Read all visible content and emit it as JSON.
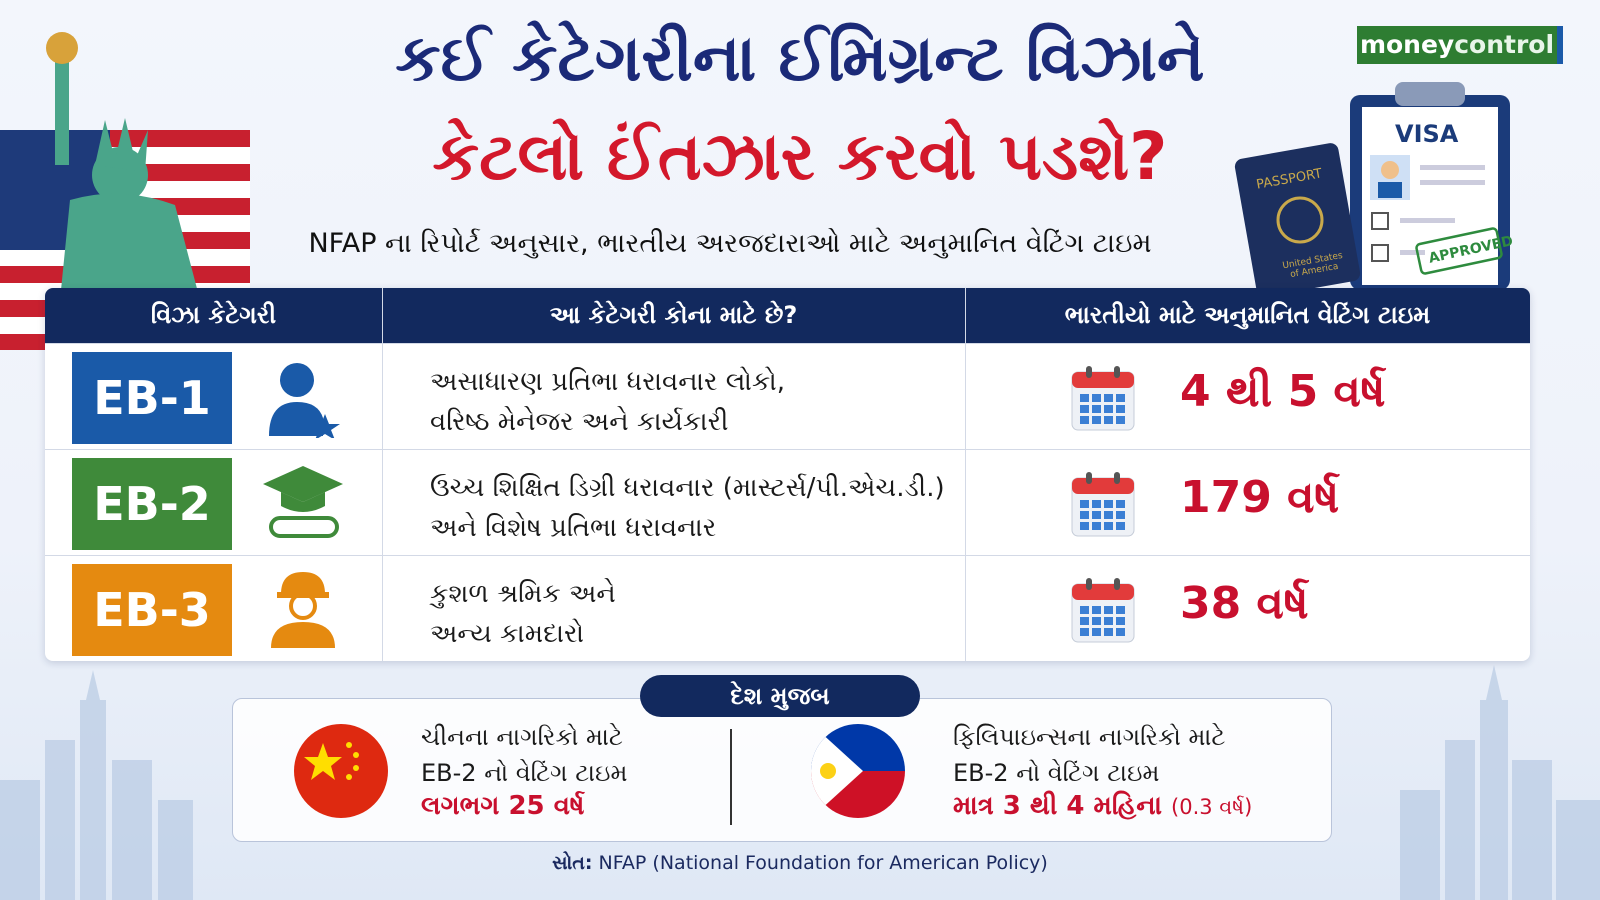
{
  "brand": {
    "part1": "money",
    "part2": "control"
  },
  "header": {
    "title_line1": "કઈ કેટેગરીના ઈમિગ્રન્ટ વિઝાને",
    "title_line2": "કેટલો ઈંતઝાર કરવો પડશે?",
    "subtitle": "NFAP ના રિપોર્ટ અનુસાર, ભારતીય અરજદારાઓ માટે અનુમાનિત વેટિંગ ટાઇમ"
  },
  "illustration": {
    "visa": "VISA",
    "passport": "PASSPORT",
    "passport_country": [
      "United States",
      "of America"
    ],
    "stamp": "APPROVED"
  },
  "table": {
    "headers": [
      "વિઝા કેટેગરી",
      "આ કેટેગરી કોના માટે છે?",
      "ભારતીયો માટે અનુમાનિત વેટિંગ ટાઇમ"
    ],
    "rows": [
      {
        "category": "EB-1",
        "description": [
          "અસાધારણ પ્રતિભા ધરાવનાર લોકો,",
          "વરિષ્ઠ મેનેજર અને કાર્યકારી"
        ],
        "waiting_time": "4 થી 5 વર્ષ"
      },
      {
        "category": "EB-2",
        "description": [
          "ઉચ્ચ શિક્ષિત ડિગ્રી ધરાવનાર (માસ્ટર્સ/પી.એચ.ડી.)",
          "અને વિશેષ પ્રતિભા ધરાવનાર"
        ],
        "waiting_time": "179 વર્ષ"
      },
      {
        "category": "EB-3",
        "description": [
          "કુશળ શ્રમિક અને",
          "અન્ય કામદારો"
        ],
        "waiting_time": "38 વર્ષ"
      }
    ]
  },
  "country_section": {
    "label": "દેશ મુજબ",
    "countries": [
      {
        "lines": [
          "ચીનના નાગરિકો માટે",
          "EB-2 નો વેટિંગ ટાઇમ"
        ],
        "waiting_time": "લગભગ 25 વર્ષ"
      },
      {
        "lines": [
          "ફિલિપાઇન્સના નાગરિકો માટે",
          "EB-2 નો વેટિંગ ટાઇમ"
        ],
        "waiting_time": "માત્ર 3 થી 4 મહિના",
        "note": "(0.3 વર્ષ)"
      }
    ]
  },
  "source": {
    "label": "સોત:",
    "text": "NFAP (National Foundation for American Policy)"
  }
}
